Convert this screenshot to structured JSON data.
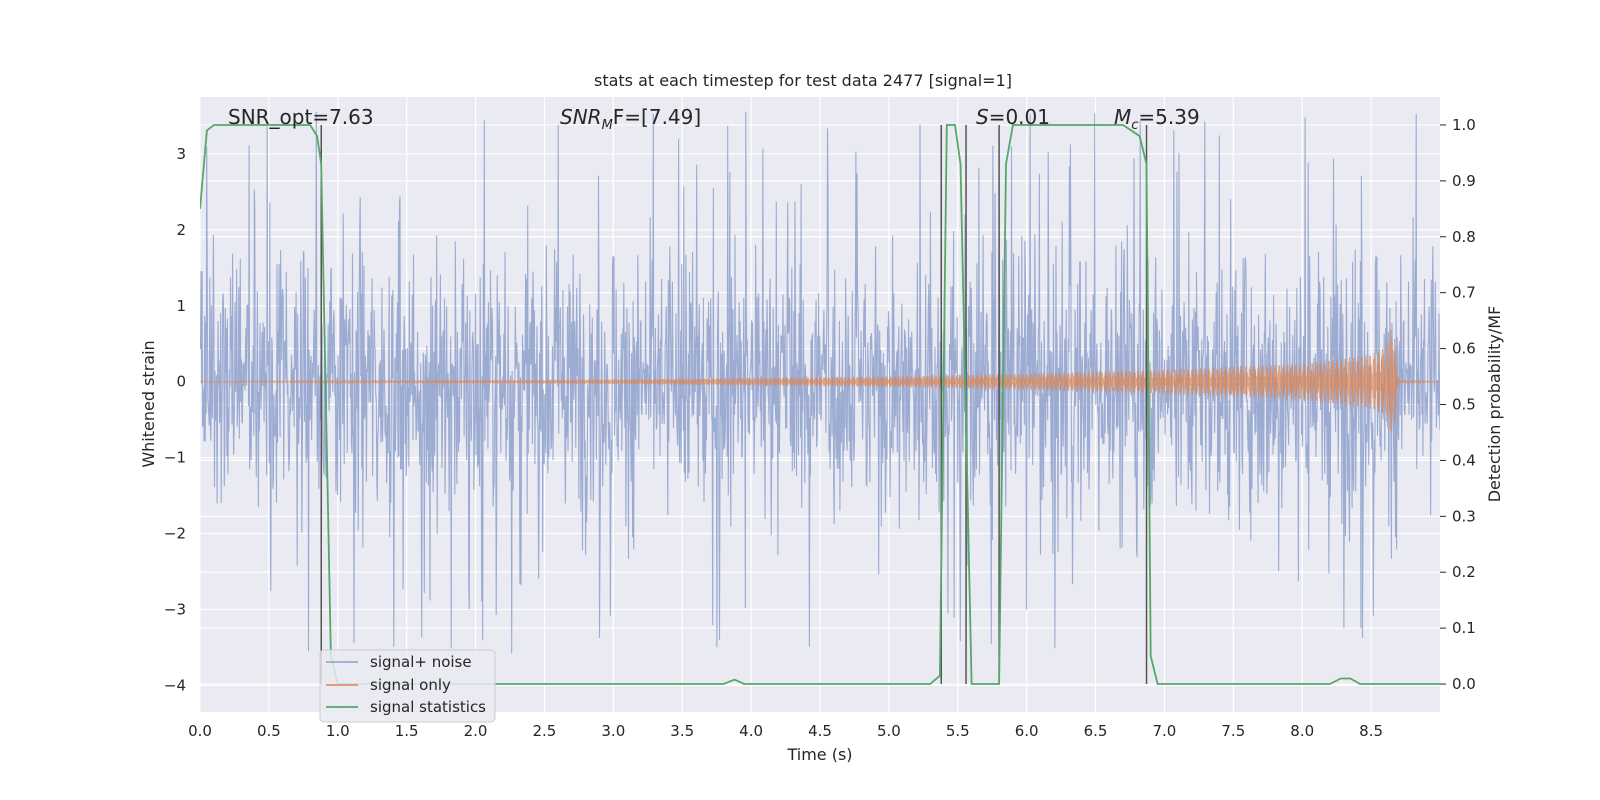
{
  "chart_data": {
    "type": "line",
    "title": "stats at each timestep for test data 2477 [signal=1]",
    "xlabel": "Time (s)",
    "ylabel": "Whitened strain",
    "ylabel_right": "Detection probability/MF",
    "xlim": [
      0.0,
      9.0
    ],
    "ylim": [
      -4.35,
      3.75
    ],
    "ylim_right": [
      -0.05,
      1.05
    ],
    "x_ticks": [
      "0.0",
      "0.5",
      "1.0",
      "1.5",
      "2.0",
      "2.5",
      "3.0",
      "3.5",
      "4.0",
      "4.5",
      "5.0",
      "5.5",
      "6.0",
      "6.5",
      "7.0",
      "7.5",
      "8.0",
      "8.5"
    ],
    "y_ticks": [
      "3",
      "2",
      "1",
      "0",
      "−1",
      "−2",
      "−3",
      "−4"
    ],
    "y_ticks_right": [
      "1.0",
      "0.9",
      "0.8",
      "0.7",
      "0.6",
      "0.5",
      "0.4",
      "0.3",
      "0.2",
      "0.1",
      "0.0"
    ],
    "grid": true,
    "legend_position": "lower-left",
    "annotations": [
      {
        "text": "SNR_opt=7.63"
      },
      {
        "text": "SNR_MF=[7.49]",
        "base": "SNR",
        "sub": "M",
        "tail": "F=[7.49]"
      },
      {
        "text": "S=0.01",
        "base": "S",
        "tail": "=0.01"
      },
      {
        "text": "M_c=5.39",
        "base": "M",
        "sub": "c",
        "tail": "=5.39"
      }
    ],
    "series": [
      {
        "name": "signal+ noise",
        "color": "#8da0cb",
        "description": "whitened strain (noise + signal)",
        "amplitude_typical": 2.2,
        "amplitude_peak": 3.6
      },
      {
        "name": "signal only",
        "color": "#dd8452",
        "envelope": {
          "x": [
            0.0,
            3.0,
            5.0,
            6.0,
            7.0,
            8.0,
            8.5,
            8.6,
            8.66,
            8.7,
            9.0
          ],
          "amp": [
            0.0,
            0.03,
            0.07,
            0.11,
            0.16,
            0.24,
            0.36,
            0.45,
            0.78,
            0.02,
            0.0
          ]
        }
      },
      {
        "name": "signal statistics",
        "color": "#55a868",
        "axis": "right",
        "x": [
          0.0,
          0.05,
          0.1,
          0.8,
          0.85,
          0.88,
          0.95,
          1.0,
          1.05,
          3.8,
          3.88,
          3.95,
          5.3,
          5.37,
          5.42,
          5.48,
          5.52,
          5.6,
          5.8,
          5.85,
          5.9,
          6.7,
          6.82,
          6.87,
          6.9,
          6.95,
          7.0,
          8.2,
          8.28,
          8.35,
          8.42,
          9.0
        ],
        "values": [
          0.85,
          0.99,
          1.0,
          1.0,
          0.98,
          0.93,
          0.05,
          0.0,
          0.0,
          0.0,
          0.008,
          0.0,
          0.0,
          0.015,
          1.0,
          1.0,
          0.93,
          0.0,
          0.0,
          0.93,
          1.0,
          1.0,
          0.98,
          0.93,
          0.05,
          0.0,
          0.0,
          0.0,
          0.01,
          0.01,
          0.0,
          0.0
        ]
      }
    ],
    "vlines_x": [
      0.88,
      5.38,
      5.56,
      5.8,
      6.87
    ]
  }
}
